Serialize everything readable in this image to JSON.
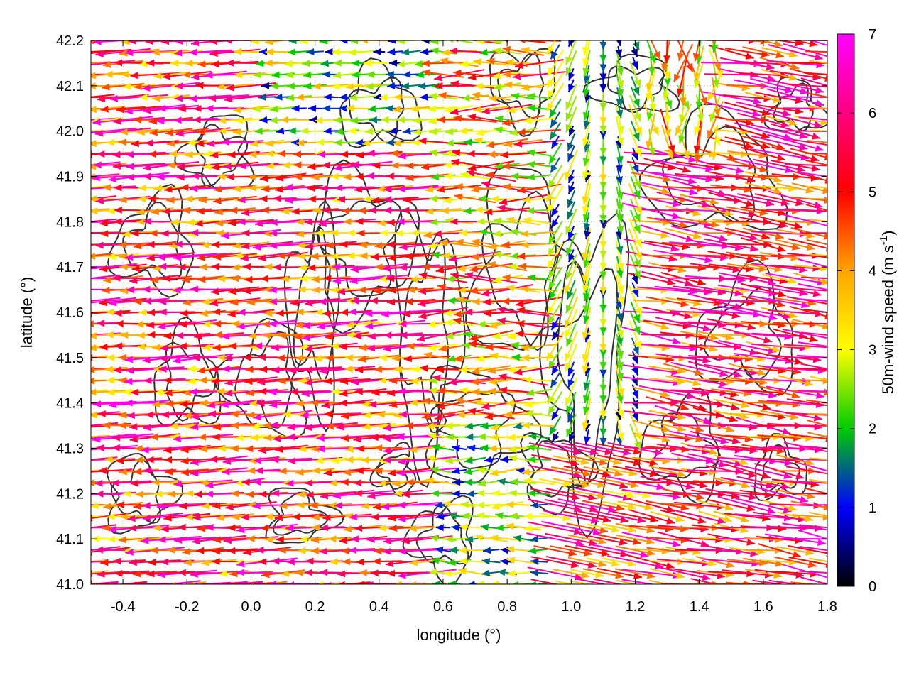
{
  "chart_data": {
    "type": "vector-field",
    "title": "",
    "xlabel": "longitude (°)",
    "ylabel": "latitude (°)",
    "xlim": [
      -0.5,
      1.8
    ],
    "ylim": [
      41.0,
      42.2
    ],
    "x_ticks": [
      "-0.4",
      "-0.2",
      "0.0",
      "0.2",
      "0.4",
      "0.6",
      "0.8",
      "1.0",
      "1.2",
      "1.4",
      "1.6",
      "1.8"
    ],
    "y_ticks": [
      "41.0",
      "41.1",
      "41.2",
      "41.3",
      "41.4",
      "41.5",
      "41.6",
      "41.7",
      "41.8",
      "41.9",
      "42.0",
      "42.1",
      "42.2"
    ],
    "grid": true,
    "colorbar": {
      "label_main": "50m-wind speed (m s",
      "label_sup": "-1",
      "label_close": ")",
      "range": [
        0,
        7
      ],
      "ticks": [
        "0",
        "1",
        "2",
        "3",
        "4",
        "5",
        "6",
        "7"
      ],
      "colors": [
        "#000000",
        "#0000ff",
        "#00cc00",
        "#ffff00",
        "#ffa500",
        "#ff0000",
        "#ff00ff"
      ]
    },
    "contour_color": "#333333",
    "vector_grid": {
      "lon_step": 0.05,
      "lat_step": 0.025
    },
    "description_regions": [
      {
        "region": "west",
        "lon_range": [
          -0.5,
          0.6
        ],
        "direction": "easterly",
        "speed_ms": [
          3,
          7
        ]
      },
      {
        "region": "east",
        "lon_range": [
          1.3,
          1.8
        ],
        "direction": "westerly",
        "speed_ms": [
          4,
          7
        ]
      },
      {
        "region": "center",
        "lon_range": [
          0.9,
          1.2
        ],
        "direction": "northerly",
        "speed_ms": [
          0.5,
          3
        ]
      }
    ]
  }
}
